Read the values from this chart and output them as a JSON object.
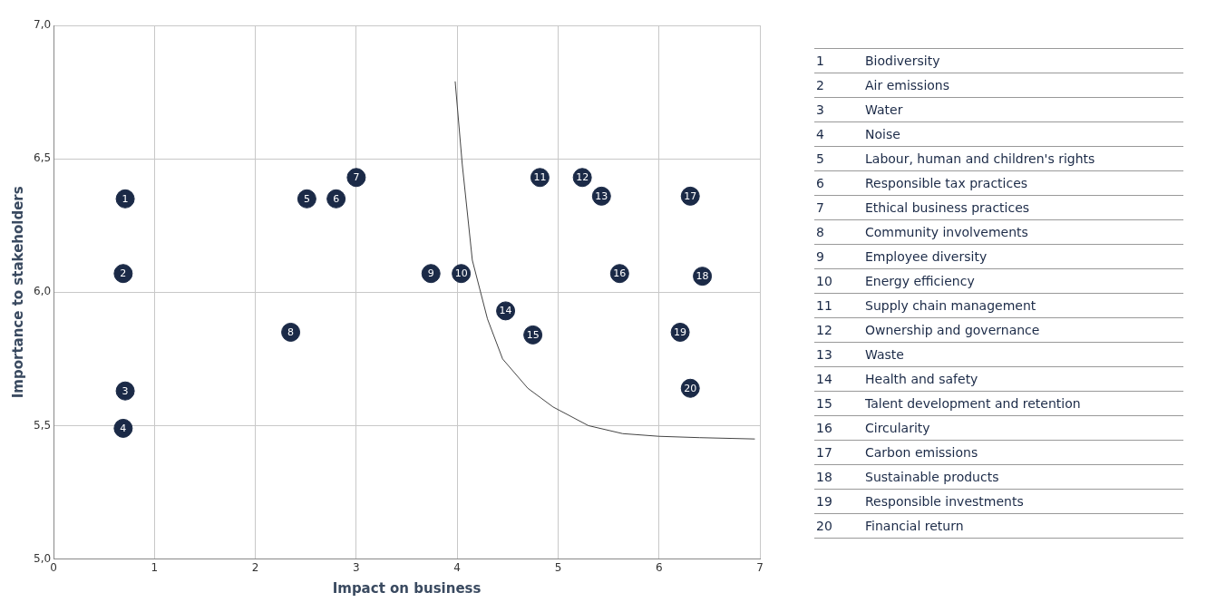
{
  "chart_data": {
    "type": "scatter",
    "xlabel": "Impact on business",
    "ylabel": "Importance to stakeholders",
    "xlim": [
      0,
      7
    ],
    "ylim": [
      5,
      7
    ],
    "xticks": [
      0,
      1,
      2,
      3,
      4,
      5,
      6,
      7
    ],
    "yticks": [
      {
        "value": 5,
        "label": "5,0"
      },
      {
        "value": 5.5,
        "label": "5,5"
      },
      {
        "value": 6,
        "label": "6,0"
      },
      {
        "value": 6.5,
        "label": "6,5"
      },
      {
        "value": 7,
        "label": "7,0"
      }
    ],
    "grid": true,
    "marker": "circle",
    "series": [
      {
        "color": "#1b2a47",
        "x": [
          0.71,
          0.69,
          0.71,
          0.69,
          2.51,
          2.8,
          3.0,
          2.35,
          3.74,
          4.04,
          4.82,
          5.24,
          5.43,
          4.48,
          4.75,
          5.61,
          6.31,
          6.43,
          6.21,
          6.31
        ],
        "values": [
          6.35,
          6.07,
          5.63,
          5.49,
          6.35,
          6.35,
          6.43,
          5.85,
          6.07,
          6.07,
          6.43,
          6.43,
          6.36,
          5.93,
          5.84,
          6.07,
          6.36,
          6.06,
          5.85,
          5.64
        ]
      },
      {
        "type": "line",
        "color": "#444444",
        "marker": "none",
        "x": [
          3.98,
          4.05,
          4.15,
          4.3,
          4.45,
          4.7,
          4.95,
          5.3,
          5.64,
          6.0,
          6.4,
          6.95
        ],
        "values": [
          6.79,
          6.48,
          6.12,
          5.9,
          5.75,
          5.64,
          5.57,
          5.5,
          5.47,
          5.46,
          5.455,
          5.45
        ]
      }
    ],
    "annotations": [
      {
        "text": "1",
        "x": 0.71,
        "y": 6.35
      },
      {
        "text": "2",
        "x": 0.69,
        "y": 6.07
      },
      {
        "text": "3",
        "x": 0.71,
        "y": 5.63
      },
      {
        "text": "4",
        "x": 0.69,
        "y": 5.49
      },
      {
        "text": "5",
        "x": 2.51,
        "y": 6.35
      },
      {
        "text": "6",
        "x": 2.8,
        "y": 6.35
      },
      {
        "text": "7",
        "x": 3.0,
        "y": 6.43
      },
      {
        "text": "8",
        "x": 2.35,
        "y": 5.85
      },
      {
        "text": "9",
        "x": 3.74,
        "y": 6.07
      },
      {
        "text": "10",
        "x": 4.04,
        "y": 6.07
      },
      {
        "text": "11",
        "x": 4.82,
        "y": 6.43
      },
      {
        "text": "12",
        "x": 5.24,
        "y": 6.43
      },
      {
        "text": "13",
        "x": 5.43,
        "y": 6.36
      },
      {
        "text": "14",
        "x": 4.48,
        "y": 5.93
      },
      {
        "text": "15",
        "x": 4.75,
        "y": 5.84
      },
      {
        "text": "16",
        "x": 5.61,
        "y": 6.07
      },
      {
        "text": "17",
        "x": 6.31,
        "y": 6.36
      },
      {
        "text": "18",
        "x": 6.43,
        "y": 6.06
      },
      {
        "text": "19",
        "x": 6.21,
        "y": 5.85
      },
      {
        "text": "20",
        "x": 6.31,
        "y": 5.64
      },
      "Biodiversity",
      "Air emissions",
      "Water",
      "Noise",
      "Labour, human and children's rights",
      "Responsible tax practices",
      "Ethical business practices",
      "Community involvements",
      "Employee diversity",
      "Energy efficiency",
      "Supply chain management",
      "Ownership and governance",
      "Waste",
      "Health and safety",
      "Talent development and retention",
      "Circularity",
      "Carbon emissions",
      "Sustainable products",
      "Responsible  investments",
      "Financial return"
    ]
  }
}
